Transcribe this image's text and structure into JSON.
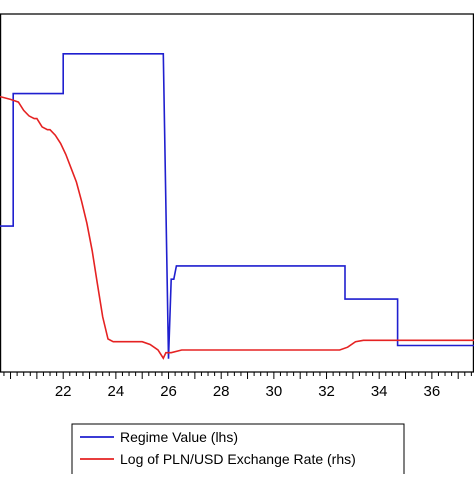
{
  "chart_data": {
    "type": "line",
    "xlabel": "",
    "ylabel": "",
    "xlim": [
      19.6,
      37.6
    ],
    "x_ticks": [
      22,
      24,
      26,
      28,
      30,
      32,
      34,
      36
    ],
    "x_tick_labels": [
      "22",
      "24",
      "26",
      "28",
      "30",
      "32",
      "34",
      "36"
    ],
    "x_minor_step": 0.25,
    "grid": false,
    "legend_position": "bottom-center",
    "series": [
      {
        "name": "Regime Value (lhs)",
        "axis": "left",
        "color": "#1f1fcf",
        "ylim": [
          -0.2,
          5.2
        ],
        "points": [
          [
            19.6,
            2.0
          ],
          [
            20.1,
            2.0
          ],
          [
            20.1,
            4.0
          ],
          [
            22.0,
            4.0
          ],
          [
            22.0,
            4.6
          ],
          [
            25.8,
            4.6
          ],
          [
            26.0,
            0.0
          ],
          [
            26.1,
            1.2
          ],
          [
            26.2,
            1.2
          ],
          [
            26.3,
            1.4
          ],
          [
            32.7,
            1.4
          ],
          [
            32.7,
            0.9
          ],
          [
            34.7,
            0.9
          ],
          [
            34.7,
            0.2
          ],
          [
            37.6,
            0.2
          ]
        ]
      },
      {
        "name": "Log of PLN/USD Exchange Rate (rhs)",
        "axis": "right",
        "color": "#e52222",
        "ylim": [
          0.5,
          1.8
        ],
        "points": [
          [
            19.6,
            1.5
          ],
          [
            20.0,
            1.49
          ],
          [
            20.3,
            1.48
          ],
          [
            20.5,
            1.45
          ],
          [
            20.7,
            1.43
          ],
          [
            20.9,
            1.42
          ],
          [
            21.0,
            1.42
          ],
          [
            21.2,
            1.39
          ],
          [
            21.4,
            1.38
          ],
          [
            21.5,
            1.38
          ],
          [
            21.7,
            1.36
          ],
          [
            21.9,
            1.33
          ],
          [
            22.1,
            1.29
          ],
          [
            22.3,
            1.24
          ],
          [
            22.5,
            1.19
          ],
          [
            22.7,
            1.12
          ],
          [
            22.9,
            1.04
          ],
          [
            23.1,
            0.94
          ],
          [
            23.3,
            0.82
          ],
          [
            23.5,
            0.7
          ],
          [
            23.7,
            0.62
          ],
          [
            23.9,
            0.61
          ],
          [
            24.5,
            0.61
          ],
          [
            25.0,
            0.61
          ],
          [
            25.3,
            0.6
          ],
          [
            25.6,
            0.58
          ],
          [
            25.8,
            0.55
          ],
          [
            25.9,
            0.57
          ],
          [
            26.1,
            0.57
          ],
          [
            26.5,
            0.58
          ],
          [
            27.0,
            0.58
          ],
          [
            29.0,
            0.58
          ],
          [
            31.0,
            0.58
          ],
          [
            32.5,
            0.58
          ],
          [
            32.8,
            0.59
          ],
          [
            33.1,
            0.61
          ],
          [
            33.4,
            0.615
          ],
          [
            34.0,
            0.615
          ],
          [
            35.0,
            0.615
          ],
          [
            37.6,
            0.615
          ]
        ]
      }
    ]
  }
}
